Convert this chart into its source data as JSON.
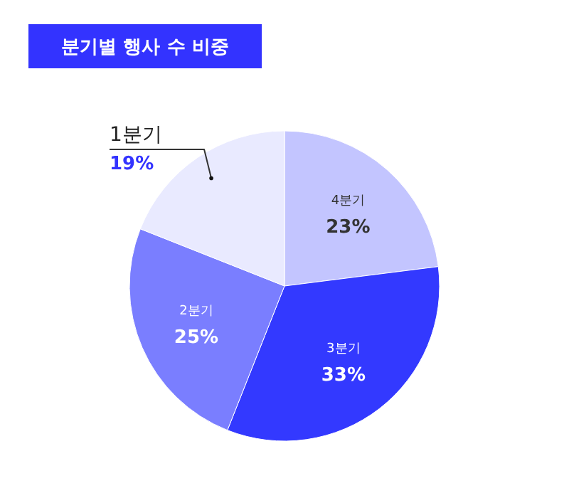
{
  "chart_data": {
    "type": "pie",
    "title": "분기별 행사 수 비중",
    "categories": [
      "4분기",
      "3분기",
      "2분기",
      "1분기"
    ],
    "values": [
      23,
      33,
      25,
      19
    ],
    "colors": [
      "#c3c5ff",
      "#3339ff",
      "#7a7eff",
      "#e9eaff"
    ],
    "value_labels": [
      "23%",
      "33%",
      "25%",
      "19%"
    ]
  }
}
